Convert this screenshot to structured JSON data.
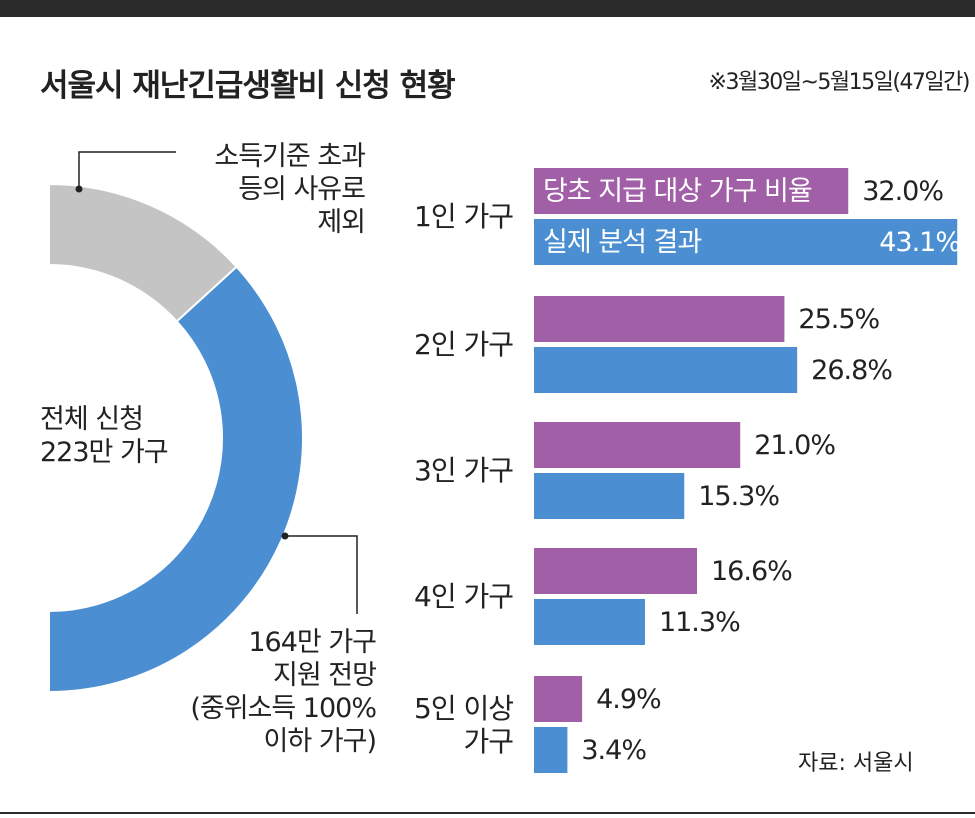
{
  "title": "서울시 재난긴급생활비 신청 현황",
  "period": "※3월30일~5월15일(47일간)",
  "source": "자료: 서울시",
  "colors": {
    "purple": "#a05fa6",
    "blue": "#4b8fd2",
    "gray": "#c4c4c4",
    "ink": "#222222"
  },
  "chart_data": [
    {
      "type": "pie",
      "style": "half-donut",
      "center_label": [
        "전체 신청",
        "223만 가구"
      ],
      "slices": [
        {
          "label": [
            "소득기준 초과",
            "등의 사유로",
            "제외"
          ],
          "value": 59,
          "color": "#c4c4c4"
        },
        {
          "label": [
            "164만 가구",
            "지원 전망",
            "(중위소득 100%",
            "이하 가구)"
          ],
          "value": 164,
          "color": "#4b8fd2"
        }
      ]
    },
    {
      "type": "bar",
      "orientation": "horizontal",
      "categories": [
        [
          "1인 가구"
        ],
        [
          "2인 가구"
        ],
        [
          "3인 가구"
        ],
        [
          "4인 가구"
        ],
        [
          "5인 이상",
          "가구"
        ]
      ],
      "series": [
        {
          "name": "당초 지급 대상 가구 비율",
          "color": "#a05fa6",
          "values": [
            32.0,
            25.5,
            21.0,
            16.6,
            4.9
          ],
          "labels": [
            "32.0%",
            "25.5%",
            "21.0%",
            "16.6%",
            "4.9%"
          ]
        },
        {
          "name": "실제 분석 결과",
          "color": "#4b8fd2",
          "values": [
            43.1,
            26.8,
            15.3,
            11.3,
            3.4
          ],
          "labels": [
            "43.1%",
            "26.8%",
            "15.3%",
            "11.3%",
            "3.4%"
          ]
        }
      ]
    }
  ]
}
